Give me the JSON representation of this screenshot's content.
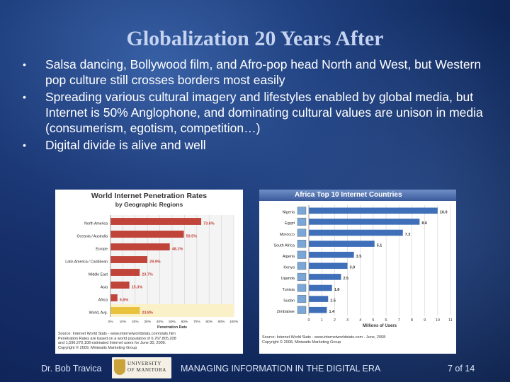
{
  "slide": {
    "title": "Globalization 20 Years After",
    "bullets": [
      "Salsa dancing, Bollywood film, and Afro-pop head North and West, but Western pop culture still crosses borders most easily",
      "Spreading various cultural imagery and lifestyles enabled by global media, but Internet is 50% Anglophone,  and dominating cultural values are unison in media (consumerism, egotism, competition…)",
      "Digital divide is alive and well"
    ],
    "bullet_symbol": "•"
  },
  "footer": {
    "author": "Dr. Bob Travica",
    "logo_line1": "UNIVERSITY",
    "logo_line2": "OF MANITOBA",
    "course": "MANAGING INFORMATION IN THE DIGITAL ERA",
    "page": "7 of 14"
  },
  "chart_data": [
    {
      "type": "bar",
      "orientation": "horizontal",
      "title": "World Internet Penetration Rates",
      "subtitle": "by Geographic Regions",
      "categories": [
        "North America",
        "Oceania / Australia",
        "Europe",
        "Latin America / Caribbean",
        "Middle East",
        "Asia",
        "Africa",
        "World, Avg."
      ],
      "values": [
        73.6,
        59.5,
        48.1,
        29.9,
        23.7,
        15.3,
        5.6,
        23.8
      ],
      "value_labels": [
        "73.6%",
        "59.5%",
        "48.1%",
        "29.9%",
        "23.7%",
        "15.3%",
        "5.6%",
        "23.8%"
      ],
      "highlight_category": "World, Avg.",
      "colors": {
        "bar": "#c0443a",
        "highlight": "#e8c23a"
      },
      "xlim": [
        0,
        100
      ],
      "x_ticks": [
        "0%",
        "10%",
        "20%",
        "30%",
        "40%",
        "50%",
        "60%",
        "70%",
        "80%",
        "90%",
        "100%"
      ],
      "xlabel": "Penetration Rate",
      "source": [
        "Source: Internet World Stats - www.internetworldstats.com/stats.htm",
        "Penetration Rates are based on a world population of 6,767,805,208",
        "and 1,596,270,108 estimated Internet users for June 30, 2009.",
        "Copyright © 2009, Miniwatts Marketing Group"
      ]
    },
    {
      "type": "bar",
      "orientation": "horizontal",
      "title": "Africa Top 10 Internet Countries",
      "categories": [
        "Nigeria",
        "Egypt",
        "Morocco",
        "South Africa",
        "Algeria",
        "Kenya",
        "Uganda",
        "Tunisia",
        "Sudan",
        "Zimbabwe"
      ],
      "values": [
        10.0,
        8.6,
        7.3,
        5.1,
        3.5,
        3.0,
        2.5,
        1.8,
        1.5,
        1.4
      ],
      "value_labels": [
        "10.0",
        "8.6",
        "7.3",
        "5.1",
        "3.5",
        "3.0",
        "2.5",
        "1.8",
        "1.5",
        "1.4"
      ],
      "colors": {
        "bar": "#3f6fb8",
        "title_bar": "#3a5a9a"
      },
      "xlim": [
        0,
        11
      ],
      "x_ticks": [
        "0",
        "1",
        "2",
        "3",
        "4",
        "5",
        "6",
        "7",
        "8",
        "9",
        "10",
        "11"
      ],
      "xlabel": "Millions of Users",
      "source": [
        "Source: Internet World Stats - www.internetworldstats.com - June, 2008",
        "Copyright © 2008, Miniwatts Marketing Group"
      ]
    }
  ]
}
